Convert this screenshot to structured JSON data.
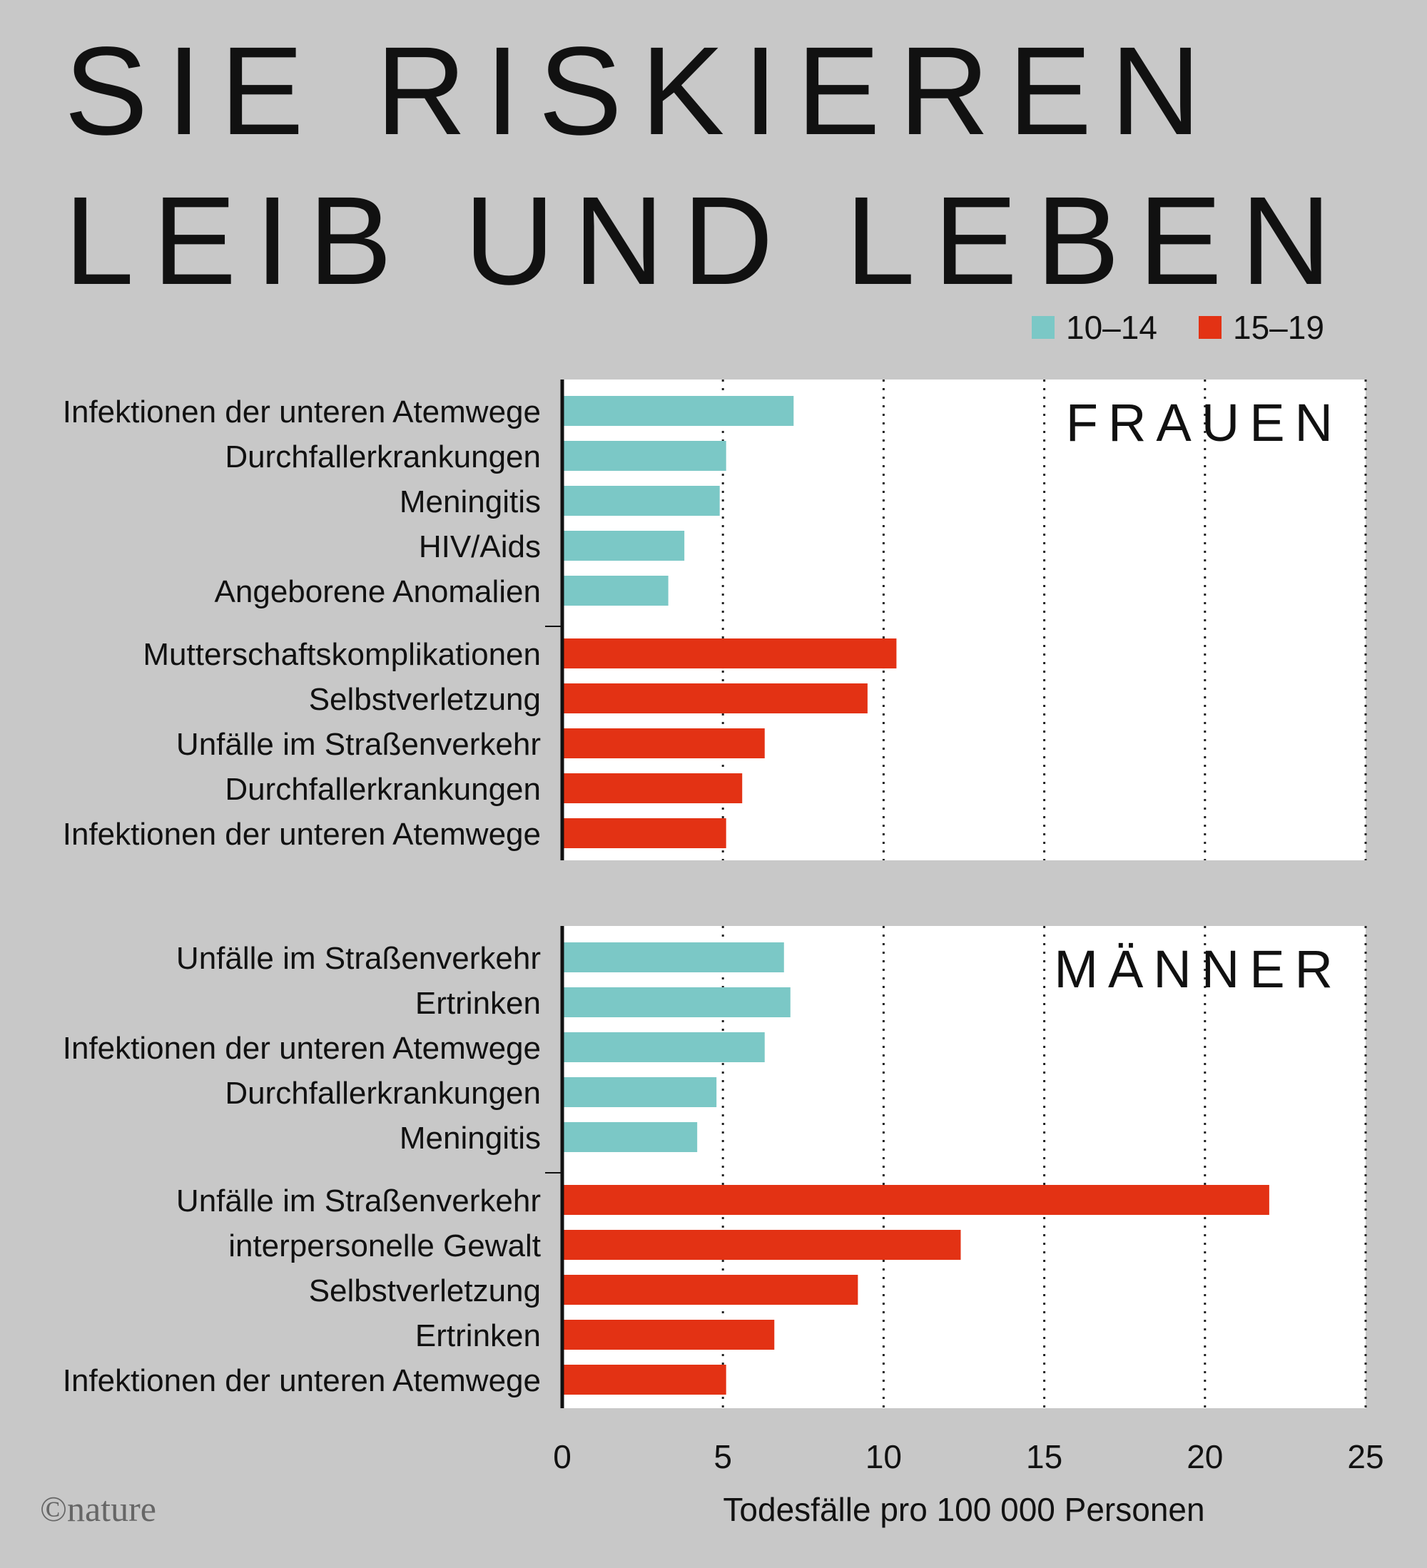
{
  "title_lines": [
    "SIE RISKIEREN",
    "LEIB UND LEBEN"
  ],
  "legend": [
    {
      "label": "10–14",
      "color": "#7bc8c6"
    },
    {
      "label": "15–19",
      "color": "#e33214"
    }
  ],
  "copyright": "©nature",
  "chart_data": {
    "type": "bar",
    "orientation": "horizontal",
    "xlabel": "Todesfälle pro 100 000 Personen",
    "xlim": [
      0,
      25
    ],
    "xticks": [
      0,
      5,
      10,
      15,
      20,
      25
    ],
    "grid": true,
    "panels": [
      {
        "name": "FRAUEN",
        "groups": [
          {
            "series": "10–14",
            "categories": [
              "Infektionen der unteren Atemwege",
              "Durchfallerkrankungen",
              "Meningitis",
              "HIV/Aids",
              "Angeborene Anomalien"
            ],
            "values": [
              7.2,
              5.1,
              4.9,
              3.8,
              3.3
            ]
          },
          {
            "series": "15–19",
            "categories": [
              "Mutterschaftskomplikationen",
              "Selbstverletzung",
              "Unfälle im Straßenverkehr",
              "Durchfallerkrankungen",
              "Infektionen der unteren Atemwege"
            ],
            "values": [
              10.4,
              9.5,
              6.3,
              5.6,
              5.1
            ]
          }
        ]
      },
      {
        "name": "MÄNNER",
        "groups": [
          {
            "series": "10–14",
            "categories": [
              "Unfälle im Straßenverkehr",
              "Ertrinken",
              "Infektionen der unteren Atemwege",
              "Durchfallerkrankungen",
              "Meningitis"
            ],
            "values": [
              6.9,
              7.1,
              6.3,
              4.8,
              4.2
            ]
          },
          {
            "series": "15–19",
            "categories": [
              "Unfälle im Straßenverkehr",
              "interpersonelle Gewalt",
              "Selbstverletzung",
              "Ertrinken",
              "Infektionen der unteren Atemwege"
            ],
            "values": [
              22.0,
              12.4,
              9.2,
              6.6,
              5.1
            ]
          }
        ]
      }
    ]
  }
}
